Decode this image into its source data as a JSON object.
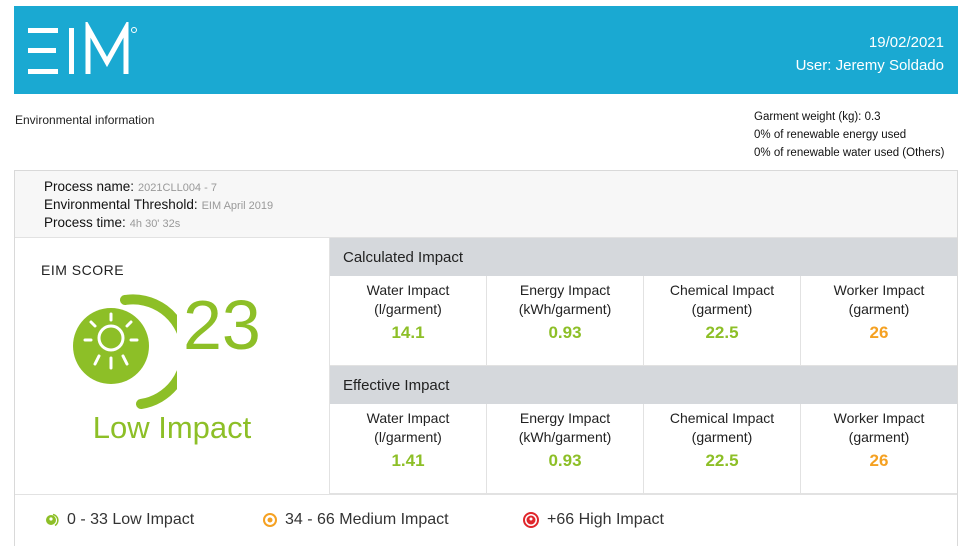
{
  "header": {
    "logo_text": "EIM",
    "date": "19/02/2021",
    "user": "User: Jeremy Soldado",
    "bg_color": "#1aa9d2"
  },
  "env_title": "Environmental information",
  "garment_info": {
    "weight": "Garment weight (kg): 0.3",
    "renewable_energy": "0% of renewable energy used",
    "renewable_water": "0% of renewable water used (Others)"
  },
  "process": {
    "name_label": "Process name:",
    "name_value": "2021CLL004 - 7",
    "threshold_label": "Environmental Threshold:",
    "threshold_value": "EIM April 2019",
    "time_label": "Process time:",
    "time_value": "4h 30' 32s"
  },
  "score": {
    "title": "EIM SCORE",
    "value": "23",
    "level": "Low Impact",
    "gauge_fraction": 0.23,
    "gauge_icon": "sun-gauge-icon",
    "color": "#8dbf27"
  },
  "calculated": {
    "title": "Calculated Impact",
    "cells": [
      {
        "label1": "Water Impact",
        "label2": "(l/garment)",
        "value": "14.1",
        "color": "green"
      },
      {
        "label1": "Energy Impact",
        "label2": "(kWh/garment)",
        "value": "0.93",
        "color": "green"
      },
      {
        "label1": "Chemical Impact",
        "label2": "(garment)",
        "value": "22.5",
        "color": "green"
      },
      {
        "label1": "Worker Impact",
        "label2": "(garment)",
        "value": "26",
        "color": "orange"
      }
    ]
  },
  "effective": {
    "title": "Effective Impact",
    "cells": [
      {
        "label1": "Water Impact",
        "label2": "(l/garment)",
        "value": "1.41",
        "color": "green"
      },
      {
        "label1": "Energy Impact",
        "label2": "(kWh/garment)",
        "value": "0.93",
        "color": "green"
      },
      {
        "label1": "Chemical Impact",
        "label2": "(garment)",
        "value": "22.5",
        "color": "green"
      },
      {
        "label1": "Worker Impact",
        "label2": "(garment)",
        "value": "26",
        "color": "orange"
      }
    ]
  },
  "legend": {
    "low": "0 - 33 Low Impact",
    "medium": "34 - 66 Medium Impact",
    "high": "+66 High Impact",
    "colors": {
      "low": "#8dbf27",
      "medium": "#f5a122",
      "high": "#e0262b"
    }
  }
}
